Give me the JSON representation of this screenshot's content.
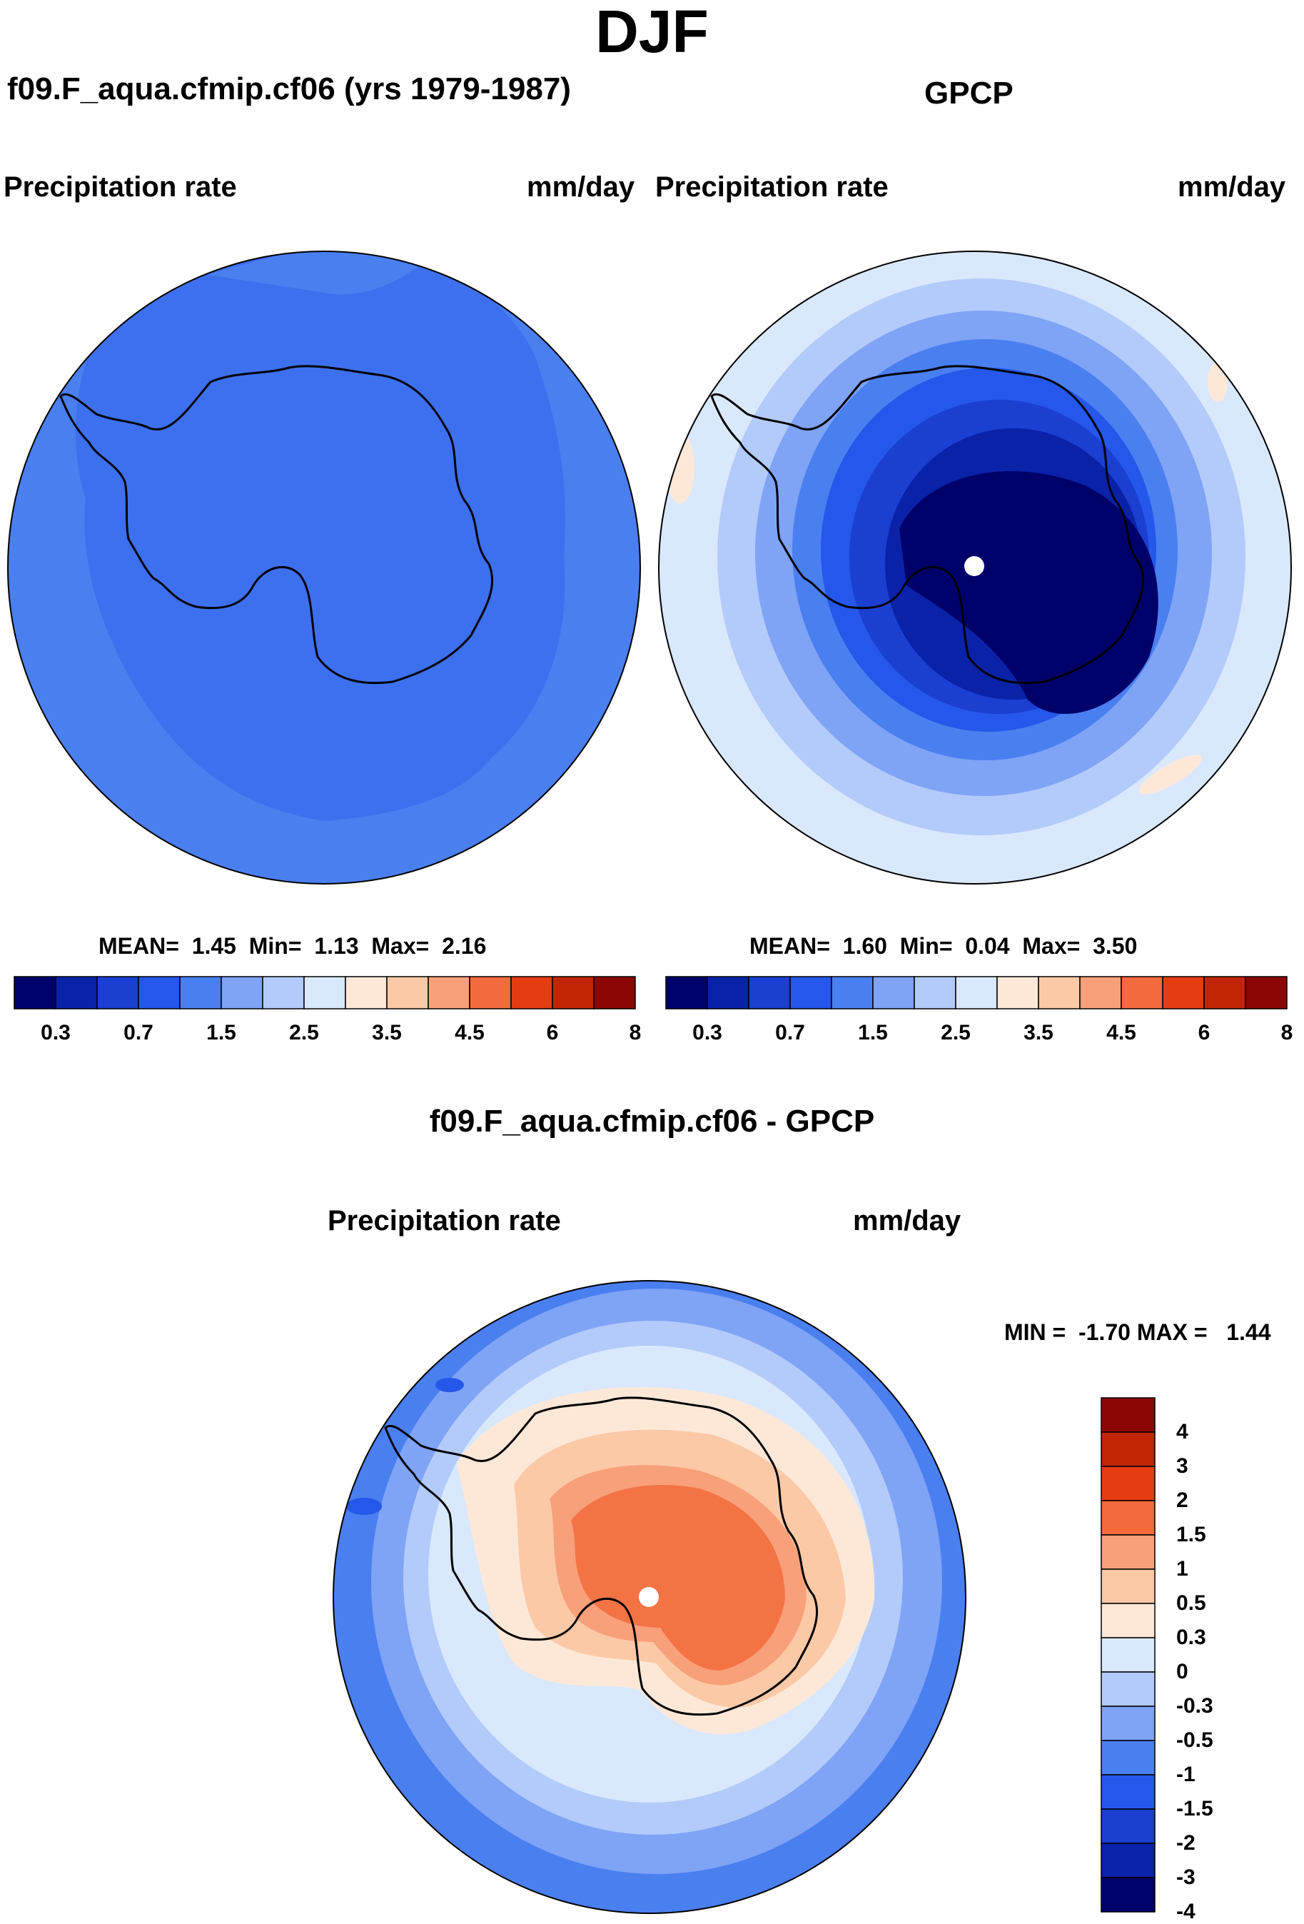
{
  "season": "DJF",
  "variable": "Precipitation rate",
  "units": "mm/day",
  "panels": {
    "model": {
      "title": "f09.F_aqua.cfmip.cf06 (yrs 1979-1987)",
      "stats": {
        "mean_label": "MEAN=",
        "mean": "1.45",
        "min_label": "Min=",
        "min": "1.13",
        "max_label": "Max=",
        "max": "2.16"
      }
    },
    "obs": {
      "title": "GPCP",
      "stats": {
        "mean_label": "MEAN=",
        "mean": "1.60",
        "min_label": "Min=",
        "min": "0.04",
        "max_label": "Max=",
        "max": "3.50"
      }
    },
    "diff": {
      "title": "f09.F_aqua.cfmip.cf06 - GPCP",
      "stats_text": "MIN =  -1.70 MAX =   1.44"
    }
  },
  "colorbar_abs": {
    "colors": [
      "#00006b",
      "#0a22a8",
      "#1a3fd1",
      "#2457ea",
      "#4a7ff0",
      "#7fa3f5",
      "#b3cbfa",
      "#d9e8fc",
      "#fde8d8",
      "#fcc9a7",
      "#f8a07a",
      "#f36b3c",
      "#e63c13",
      "#c22506",
      "#8c0606"
    ],
    "labels": [
      "0.3",
      "0.7",
      "1.5",
      "2.5",
      "3.5",
      "4.5",
      "6",
      "8"
    ]
  },
  "colorbar_diff": {
    "colors": [
      "#8c0606",
      "#c22506",
      "#e63c13",
      "#f36b3c",
      "#f8a07a",
      "#fcc9a7",
      "#fde8d8",
      "#d9e8fc",
      "#b3cbfa",
      "#7fa3f5",
      "#4a7ff0",
      "#2457ea",
      "#1a3fd1",
      "#0a22a8",
      "#00006b"
    ],
    "labels": [
      "4",
      "3",
      "2",
      "1.5",
      "1",
      "0.5",
      "0.3",
      "0",
      "-0.3",
      "-0.5",
      "-1",
      "-1.5",
      "-2",
      "-3",
      "-4"
    ]
  }
}
